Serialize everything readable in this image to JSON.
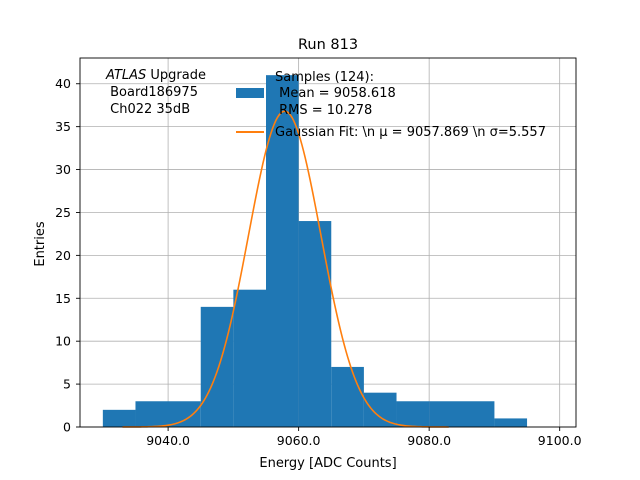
{
  "chart_data": {
    "type": "bar",
    "title": "Run 813",
    "xlabel": "Energy [ADC Counts]",
    "ylabel": "Entries",
    "xlim": [
      9026.5,
      9102.5
    ],
    "ylim": [
      0,
      43
    ],
    "grid": true,
    "x_ticks": [
      {
        "value": 9040,
        "label": "9040.0"
      },
      {
        "value": 9060,
        "label": "9060.0"
      },
      {
        "value": 9080,
        "label": "9080.0"
      },
      {
        "value": 9100,
        "label": "9100.0"
      }
    ],
    "y_ticks": [
      {
        "value": 0,
        "label": "0"
      },
      {
        "value": 5,
        "label": "5"
      },
      {
        "value": 10,
        "label": "10"
      },
      {
        "value": 15,
        "label": "15"
      },
      {
        "value": 20,
        "label": "20"
      },
      {
        "value": 25,
        "label": "25"
      },
      {
        "value": 30,
        "label": "30"
      },
      {
        "value": 35,
        "label": "35"
      },
      {
        "value": 40,
        "label": "40"
      }
    ],
    "histogram": {
      "bin_edges": [
        9030,
        9035,
        9045,
        9050,
        9055,
        9060,
        9065,
        9070,
        9075,
        9080,
        9090,
        9095
      ],
      "counts": [
        2,
        3,
        14,
        16,
        41,
        24,
        7,
        4,
        3,
        3,
        1
      ],
      "color": "#1f77b4"
    },
    "gaussian_fit": {
      "mu": 9057.869,
      "sigma": 5.557,
      "amplitude": 36.8,
      "x_range": [
        9033,
        9083
      ],
      "color": "#ff7f0e"
    },
    "annotation": {
      "line1_italic": "ATLAS",
      "line1_rest": " Upgrade",
      "line2": " Board186975",
      "line3": " Ch022 35dB"
    },
    "legend": {
      "placement": "top-right",
      "entries": [
        {
          "kind": "patch",
          "lines": [
            "Samples (124):",
            " Mean = 9058.618",
            " RMS = 10.278"
          ]
        },
        {
          "kind": "line",
          "lines": [
            "Gaussian Fit: \\n μ = 9057.869 \\n σ=5.557"
          ]
        }
      ]
    }
  }
}
